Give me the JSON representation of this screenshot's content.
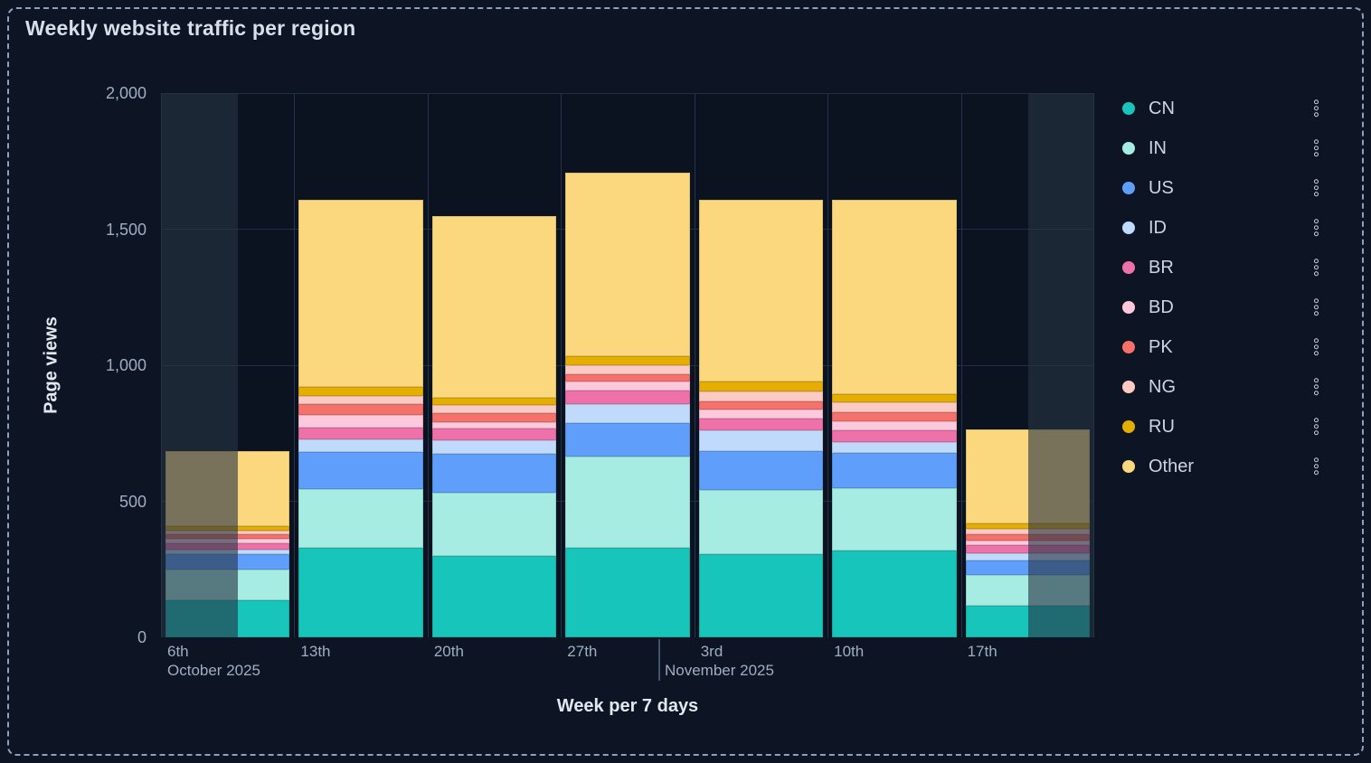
{
  "panel": {
    "title": "Weekly website traffic per region",
    "background_color": "#0d1524",
    "border_color": "#8ea0bd"
  },
  "chart_data": {
    "type": "bar",
    "stacked": true,
    "title": "Weekly website traffic per region",
    "xlabel": "Week per 7 days",
    "ylabel": "Page views",
    "ylim": [
      0,
      2000
    ],
    "yticks": [
      0,
      500,
      1000,
      1500,
      2000
    ],
    "ytick_labels": [
      "0",
      "500",
      "1,000",
      "1,500",
      "2,000"
    ],
    "categories": [
      "6th",
      "13th",
      "20th",
      "27th",
      "3rd",
      "10th",
      "17th"
    ],
    "month_labels": [
      {
        "text": "October 2025",
        "category_index": 0
      },
      {
        "text": "November 2025",
        "category_index": 4
      }
    ],
    "grid": true,
    "legend_position": "right",
    "partial_bars": {
      "first_bar_faded_left_portion": true,
      "last_bar_faded_right_portion": true
    },
    "series": [
      {
        "name": "CN",
        "color": "#17C5BB",
        "values": [
          135,
          330,
          300,
          330,
          305,
          320,
          115
        ]
      },
      {
        "name": "IN",
        "color": "#A6ECE2",
        "values": [
          115,
          215,
          233,
          335,
          236,
          227,
          113
        ]
      },
      {
        "name": "US",
        "color": "#5F9FFB",
        "values": [
          55,
          135,
          141,
          121,
          144,
          131,
          53
        ]
      },
      {
        "name": "ID",
        "color": "#C0DAFB",
        "values": [
          16,
          48,
          50,
          70,
          77,
          39,
          28
        ]
      },
      {
        "name": "BR",
        "color": "#EE71AA",
        "values": [
          26,
          44,
          42,
          50,
          43,
          44,
          31
        ]
      },
      {
        "name": "BD",
        "color": "#FBC8DC",
        "values": [
          14,
          45,
          25,
          35,
          31,
          33,
          17
        ]
      },
      {
        "name": "PK",
        "color": "#F4726B",
        "values": [
          19,
          39,
          33,
          27,
          32,
          34,
          21
        ]
      },
      {
        "name": "NG",
        "color": "#FBCBC3",
        "values": [
          13,
          31,
          31,
          32,
          35,
          35,
          20
        ]
      },
      {
        "name": "RU",
        "color": "#E5AE03",
        "values": [
          15,
          33,
          27,
          32,
          38,
          31,
          22
        ]
      },
      {
        "name": "Other",
        "color": "#FBD87E",
        "values": [
          275,
          689,
          666,
          675,
          667,
          715,
          345
        ]
      }
    ]
  },
  "legend": {
    "menu_icon": "kebab-menu-icon"
  }
}
